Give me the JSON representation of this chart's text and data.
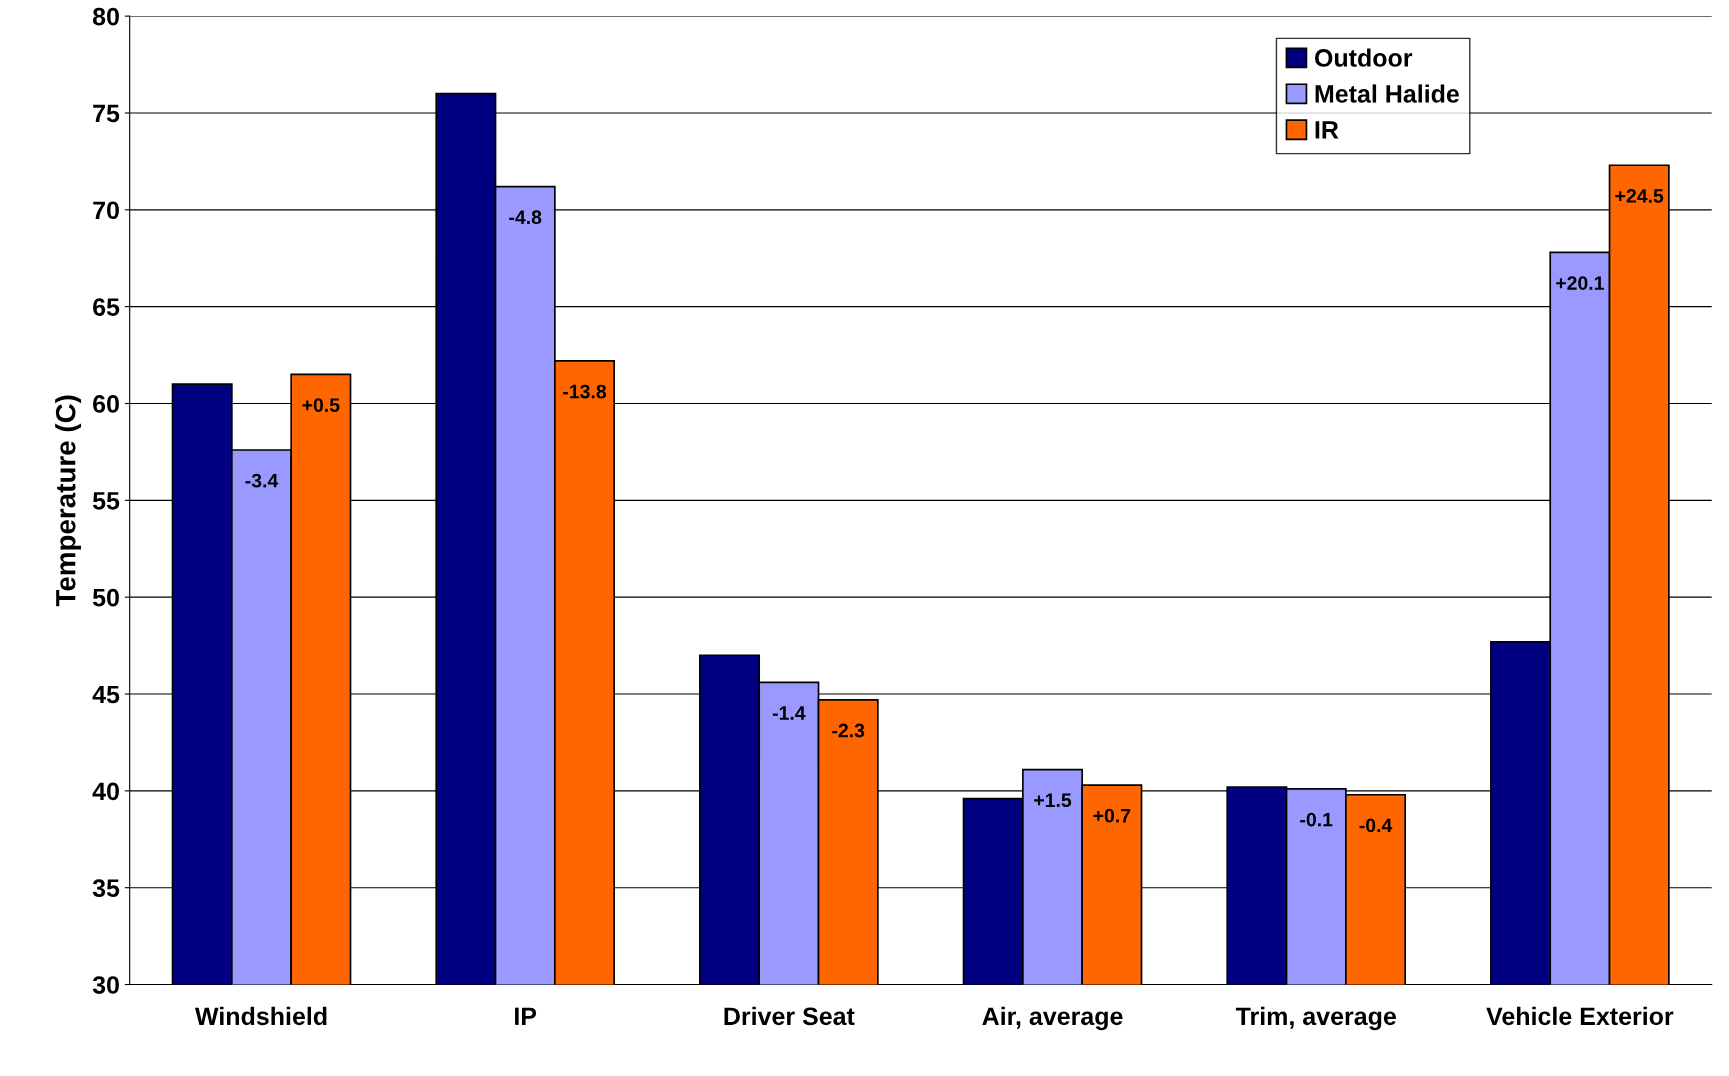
{
  "chart_data": {
    "type": "bar",
    "ylabel": "Temperature (C)",
    "categories": [
      "Windshield",
      "IP",
      "Driver Seat",
      "Air, average",
      "Trim, average",
      "Vehicle Exterior"
    ],
    "series": [
      {
        "name": "Outdoor",
        "color": "#000080",
        "values": [
          61,
          76,
          47,
          39.6,
          40.2,
          47.7
        ]
      },
      {
        "name": "Metal Halide",
        "color": "#9999ff",
        "values": [
          57.6,
          71.2,
          45.6,
          41.1,
          40.1,
          67.8
        ]
      },
      {
        "name": "IR",
        "color": "#ff6600",
        "values": [
          61.5,
          62.2,
          44.7,
          40.3,
          39.8,
          72.3
        ]
      }
    ],
    "annotations": [
      "-3.4",
      "-4.8",
      "-1.4",
      "+1.5",
      "-0.1",
      "+20.1",
      "+0.5",
      "-13.8",
      "-2.3",
      "+0.7",
      "-0.4",
      "+24.5"
    ],
    "ylim": [
      30,
      80
    ],
    "yticks": [
      30,
      35,
      40,
      45,
      50,
      55,
      60,
      65,
      70,
      75,
      80
    ],
    "grid": "y",
    "legend": "top right"
  }
}
